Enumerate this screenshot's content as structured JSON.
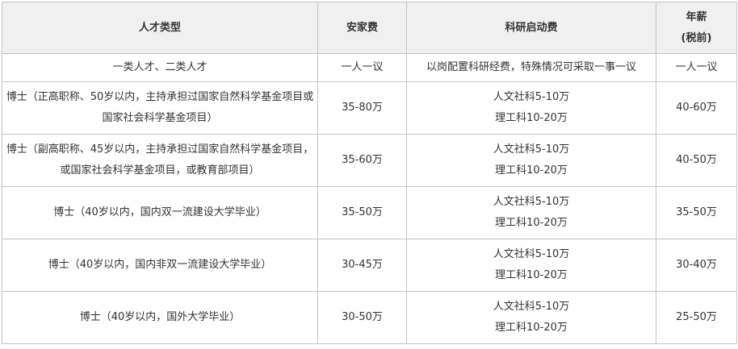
{
  "headers": [
    "人才类型",
    "安家费",
    "科研启动费",
    "年薪",
    "(税前)"
  ],
  "rows": [
    {
      "type": "一类人才、二类人才",
      "settle": "一人一议",
      "research": [
        "以岗配置科研经费，特殊情况可采取一事一议"
      ],
      "salary": "一人一议"
    },
    {
      "type": "博士（正高职称、50岁以内，主持承担过国家自然科学基金项目或国家社会科学基金项目）",
      "settle": "35-80万",
      "research": [
        "人文社科5-10万",
        "理工科10-20万"
      ],
      "salary": "40-60万"
    },
    {
      "type": "博士（副高职称、45岁以内，主持承担过国家自然科学基金项目，或国家社会科学基金项目，或教育部项目）",
      "settle": "35-60万",
      "research": [
        "人文社科5-10万",
        "理工科10-20万"
      ],
      "salary": "40-50万"
    },
    {
      "type": "博士（40岁以内，国内双一流建设大学毕业）",
      "settle": "35-50万",
      "research": [
        "人文社科5-10万",
        "理工科10-20万"
      ],
      "salary": "35-50万"
    },
    {
      "type": "博士（40岁以内，国内非双一流建设大学毕业）",
      "settle": "30-45万",
      "research": [
        "人文社科5-10万",
        "理工科10-20万"
      ],
      "salary": "30-40万"
    },
    {
      "type": "博士（40岁以内，国外大学毕业）",
      "settle": "30-50万",
      "research": [
        "人文社科5-10万",
        "理工科10-20万"
      ],
      "salary": "25-50万"
    }
  ]
}
